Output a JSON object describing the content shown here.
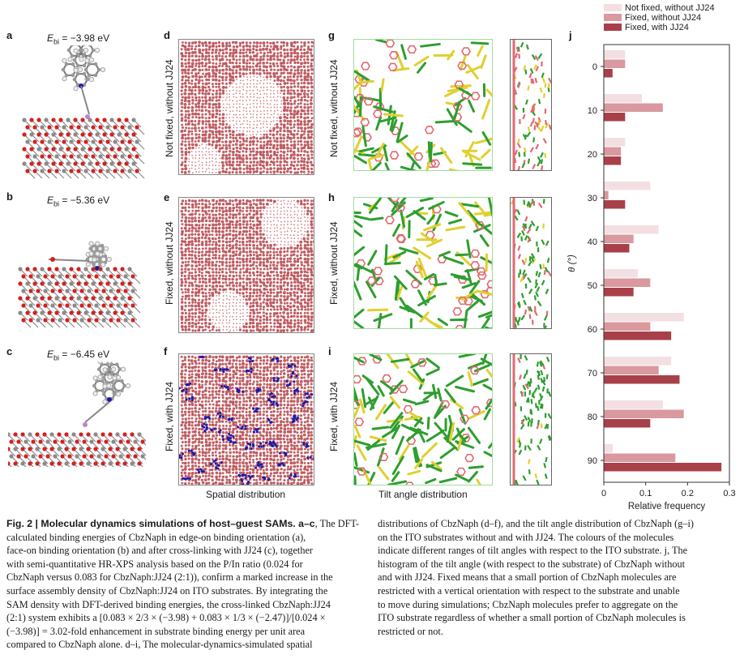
{
  "panels": {
    "a": {
      "label": "a",
      "energy": "E",
      "energy_sub": "bi",
      "energy_val": " = −3.98 eV"
    },
    "b": {
      "label": "b",
      "energy": "E",
      "energy_sub": "bi",
      "energy_val": " = −5.36 eV"
    },
    "c": {
      "label": "c",
      "energy": "E",
      "energy_sub": "bi",
      "energy_val": " = −6.45 eV"
    },
    "d": {
      "label": "d",
      "row": "Not fixed, without JJ24"
    },
    "e": {
      "label": "e",
      "row": "Fixed, without JJ24"
    },
    "f": {
      "label": "f",
      "row": "Fixed, with JJ24"
    },
    "g": {
      "label": "g",
      "row": "Not fixed, without JJ24"
    },
    "h": {
      "label": "h",
      "row": "Fixed, without JJ24"
    },
    "i": {
      "label": "i",
      "row": "Fixed, with JJ24"
    },
    "j": {
      "label": "j"
    },
    "spatial_label": "Spatial distribution",
    "tilt_label": "Tilt angle distribution"
  },
  "colors": {
    "not_fixed": "#f3dfe2",
    "fixed_without": "#d9999e",
    "fixed_with": "#a8404a",
    "mol_pink": "#e06a72",
    "mol_green": "#2e9e2e",
    "mol_yellow": "#e0d030",
    "mol_blue": "#1a1aa8",
    "ito_red": "#d42020",
    "ito_grey": "#8a8a8a",
    "dots": "#b84a50"
  },
  "chart_data": {
    "type": "bar",
    "orientation": "horizontal",
    "categories": [
      "0",
      "10",
      "20",
      "30",
      "40",
      "50",
      "60",
      "70",
      "80",
      "90"
    ],
    "series": [
      {
        "name": "Not fixed, without JJ24",
        "values": [
          0.05,
          0.09,
          0.05,
          0.11,
          0.13,
          0.08,
          0.19,
          0.16,
          0.14,
          0.02
        ]
      },
      {
        "name": "Fixed, without JJ24",
        "values": [
          0.05,
          0.14,
          0.04,
          0.01,
          0.07,
          0.11,
          0.11,
          0.13,
          0.19,
          0.17
        ]
      },
      {
        "name": "Fixed, with JJ24",
        "values": [
          0.02,
          0.05,
          0.04,
          0.05,
          0.06,
          0.07,
          0.16,
          0.18,
          0.11,
          0.28
        ]
      }
    ],
    "xlabel": "Relative frequency",
    "ylabel": "θ (°)",
    "xlim": [
      0,
      0.3
    ],
    "xticks": [
      "0",
      "0.1",
      "0.2",
      "0.3"
    ],
    "legend_position": "top"
  },
  "caption": {
    "left": [
      {
        "bold": "Fig. 2 | Molecular dynamics simulations of host–guest SAMs. a–c",
        "text": ", The DFT-"
      },
      {
        "text": "calculated binding energies of CbzNaph in edge-on binding orientation ("
      },
      {
        "text": "face-on binding orientation (b) and after cross-linking with JJ24 (c), together"
      },
      {
        "text": "with semi-quantitative HR-XPS analysis based on the P/In ratio (0.024 for"
      },
      {
        "text": "CbzNaph versus 0.083 for CbzNaph:JJ24 (2:1)), confirm a marked increase in the"
      },
      {
        "text": "surface assembly density of CbzNaph:JJ24 on ITO substrates. By integrating the"
      },
      {
        "text": "SAM density with DFT-derived binding energies, the cross-linked CbzNaph:JJ24"
      },
      {
        "text": "(2:1) system exhibits a [0.083 × 2/3 × (−3.98) + 0.083 × 1/3 × (−2.47)]/[0.024 ×"
      },
      {
        "text": "(−3.98)] = 3.02-fold enhancement in substrate binding energy per unit area"
      },
      {
        "text": "compared to CbzNaph alone. d–i, The molecular-dynamics-simulated spatial"
      }
    ],
    "right": [
      {
        "text": "distributions of CbzNaph (d–f), and the tilt angle distribution of CbzNaph (g–i)"
      },
      {
        "text": "on the ITO substrates without and with JJ24. The colours of the molecules"
      },
      {
        "text": "indicate different ranges of tilt angles with respect to the ITO substrate. j, The"
      },
      {
        "text": "histogram of the tilt angle (with respect to the substrate) of CbzNaph without"
      },
      {
        "text": "and with JJ24. Fixed means that a small portion of CbzNaph molecules are"
      },
      {
        "text": "restricted with a vertical orientation with respect to the substrate and unable"
      },
      {
        "text": "to move during simulations; CbzNaph molecules prefer to aggregate on the"
      },
      {
        "text": "ITO substrate regardless of whether a small portion of CbzNaph molecules is"
      },
      {
        "text": "restricted or not."
      }
    ],
    "line1_a_tail": "a),"
  }
}
